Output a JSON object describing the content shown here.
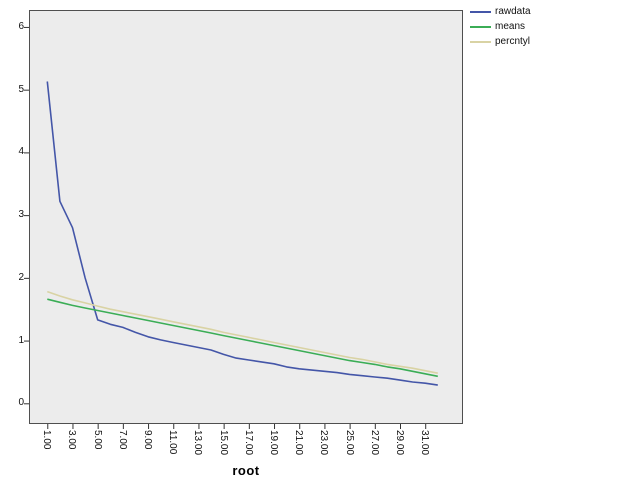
{
  "colors": {
    "page_bg": "#ffffff",
    "plot_bg": "#ececec",
    "plot_border": "#4f4f4f",
    "tick_color": "#333333",
    "text_color": "#111111"
  },
  "chart_data": {
    "type": "line",
    "title": "",
    "xlabel": "root",
    "ylabel": "",
    "grid": false,
    "legend_position": "top-right-outside",
    "xlim": [
      -0.45,
      34.0
    ],
    "ylim": [
      -0.33,
      6.27
    ],
    "y_ticks": [
      0,
      1,
      2,
      3,
      4,
      5,
      6
    ],
    "x_tick_positions": [
      1,
      3,
      5,
      7,
      9,
      11,
      13,
      15,
      17,
      19,
      21,
      23,
      25,
      27,
      29,
      31
    ],
    "x_tick_labels": [
      "1.00",
      "3.00",
      "5.00",
      "7.00",
      "9.00",
      "11.00",
      "13.00",
      "15.00",
      "17.00",
      "19.00",
      "21.00",
      "23.00",
      "25.00",
      "27.00",
      "29.00",
      "31.00"
    ],
    "x": [
      1,
      2,
      3,
      4,
      5,
      6,
      7,
      8,
      9,
      10,
      11,
      12,
      13,
      14,
      15,
      16,
      17,
      18,
      19,
      20,
      21,
      22,
      23,
      24,
      25,
      26,
      27,
      28,
      29,
      30,
      31,
      32
    ],
    "series": [
      {
        "name": "rawdata",
        "color": "#4456A8",
        "values": [
          5.13,
          3.22,
          2.8,
          2.0,
          1.33,
          1.26,
          1.21,
          1.13,
          1.06,
          1.01,
          0.97,
          0.93,
          0.89,
          0.85,
          0.78,
          0.72,
          0.69,
          0.66,
          0.63,
          0.58,
          0.55,
          0.53,
          0.51,
          0.49,
          0.46,
          0.44,
          0.42,
          0.4,
          0.37,
          0.34,
          0.32,
          0.29
        ]
      },
      {
        "name": "means",
        "color": "#3BAD56",
        "values": [
          1.66,
          1.61,
          1.56,
          1.52,
          1.48,
          1.44,
          1.4,
          1.36,
          1.32,
          1.28,
          1.24,
          1.2,
          1.16,
          1.12,
          1.08,
          1.04,
          1.0,
          0.96,
          0.92,
          0.88,
          0.84,
          0.8,
          0.76,
          0.72,
          0.68,
          0.65,
          0.62,
          0.58,
          0.55,
          0.51,
          0.47,
          0.43
        ]
      },
      {
        "name": "percntyl",
        "color": "#D9D3A4",
        "values": [
          1.78,
          1.71,
          1.65,
          1.6,
          1.55,
          1.5,
          1.46,
          1.42,
          1.38,
          1.34,
          1.3,
          1.26,
          1.22,
          1.18,
          1.13,
          1.09,
          1.05,
          1.01,
          0.97,
          0.93,
          0.89,
          0.85,
          0.81,
          0.77,
          0.73,
          0.7,
          0.66,
          0.62,
          0.59,
          0.56,
          0.52,
          0.48
        ]
      }
    ]
  }
}
